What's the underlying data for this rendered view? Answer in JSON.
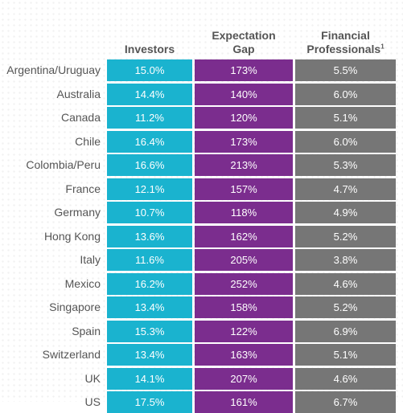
{
  "colors": {
    "investors": "#1ab3cf",
    "expectation_gap": "#7b2d8e",
    "financial_professionals": "#767676"
  },
  "chart_data": {
    "type": "table",
    "columns": [
      {
        "key": "investors",
        "label": "Investors",
        "label_lines": [
          "Investors"
        ]
      },
      {
        "key": "expectation_gap",
        "label": "Expectation Gap",
        "label_lines": [
          "Expectation",
          "Gap"
        ]
      },
      {
        "key": "financial_professionals",
        "label": "Financial Professionals¹",
        "label_lines": [
          "Financial",
          "Professionals"
        ],
        "footnote": "1"
      }
    ],
    "rows": [
      {
        "country": "Argentina/Uruguay",
        "investors": "15.0%",
        "expectation_gap": "173%",
        "financial_professionals": "5.5%"
      },
      {
        "country": "Australia",
        "investors": "14.4%",
        "expectation_gap": "140%",
        "financial_professionals": "6.0%"
      },
      {
        "country": "Canada",
        "investors": "11.2%",
        "expectation_gap": "120%",
        "financial_professionals": "5.1%"
      },
      {
        "country": "Chile",
        "investors": "16.4%",
        "expectation_gap": "173%",
        "financial_professionals": "6.0%"
      },
      {
        "country": "Colombia/Peru",
        "investors": "16.6%",
        "expectation_gap": "213%",
        "financial_professionals": "5.3%"
      },
      {
        "country": "France",
        "investors": "12.1%",
        "expectation_gap": "157%",
        "financial_professionals": "4.7%"
      },
      {
        "country": "Germany",
        "investors": "10.7%",
        "expectation_gap": "118%",
        "financial_professionals": "4.9%"
      },
      {
        "country": "Hong Kong",
        "investors": "13.6%",
        "expectation_gap": "162%",
        "financial_professionals": "5.2%"
      },
      {
        "country": "Italy",
        "investors": "11.6%",
        "expectation_gap": "205%",
        "financial_professionals": "3.8%"
      },
      {
        "country": "Mexico",
        "investors": "16.2%",
        "expectation_gap": "252%",
        "financial_professionals": "4.6%"
      },
      {
        "country": "Singapore",
        "investors": "13.4%",
        "expectation_gap": "158%",
        "financial_professionals": "5.2%"
      },
      {
        "country": "Spain",
        "investors": "15.3%",
        "expectation_gap": "122%",
        "financial_professionals": "6.9%"
      },
      {
        "country": "Switzerland",
        "investors": "13.4%",
        "expectation_gap": "163%",
        "financial_professionals": "5.1%"
      },
      {
        "country": "UK",
        "investors": "14.1%",
        "expectation_gap": "207%",
        "financial_professionals": "4.6%"
      },
      {
        "country": "US",
        "investors": "17.5%",
        "expectation_gap": "161%",
        "financial_professionals": "6.7%"
      }
    ]
  }
}
